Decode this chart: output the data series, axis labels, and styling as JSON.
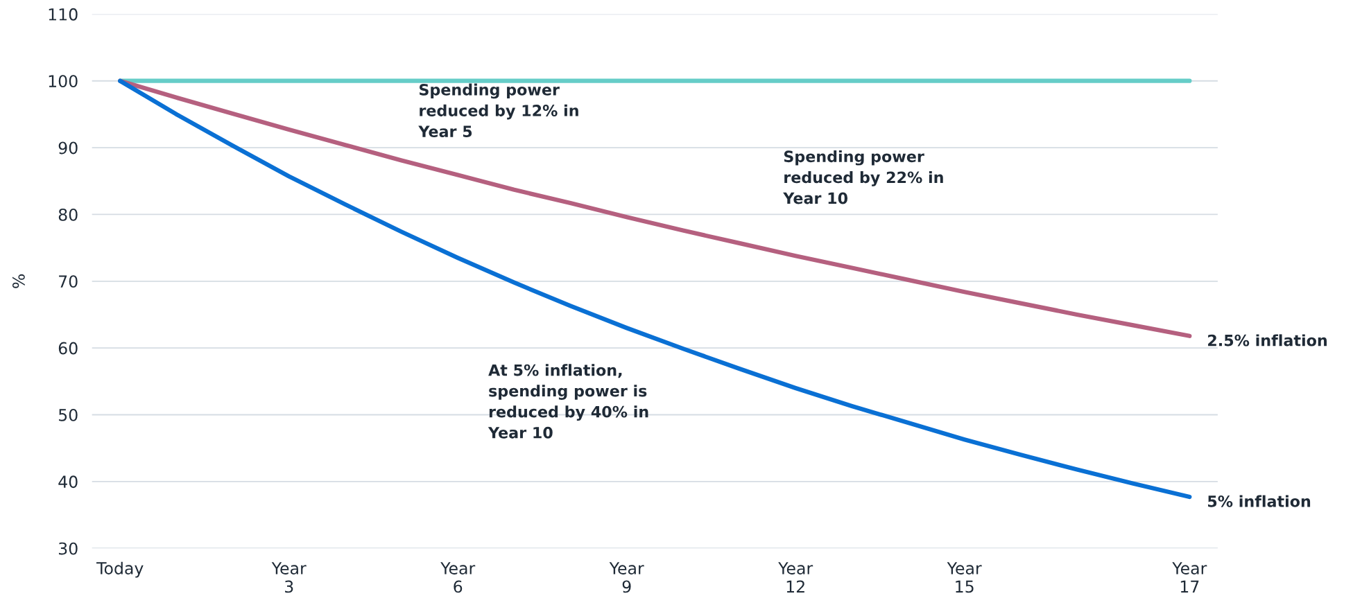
{
  "chart_data": {
    "type": "line",
    "ylabel": "%",
    "categories": [
      "Today",
      null,
      null,
      "Year\n3",
      null,
      null,
      "Year\n6",
      null,
      null,
      "Year\n9",
      null,
      null,
      "Year\n12",
      null,
      null,
      "Year\n15",
      null,
      null,
      null,
      "Year\n17"
    ],
    "series": [
      {
        "color": "#66cdc8",
        "values": [
          100,
          100,
          100,
          100,
          100,
          100,
          100,
          100,
          100,
          100,
          100,
          100,
          100,
          100,
          100,
          100,
          100,
          100,
          100,
          100
        ]
      },
      {
        "name": "2.5% inflation",
        "color": "#b5607f",
        "values": [
          100,
          97.5,
          95.1,
          92.7,
          90.4,
          88.1,
          85.9,
          83.7,
          81.7,
          79.6,
          77.6,
          75.7,
          73.8,
          72.0,
          70.2,
          68.4,
          66.7,
          65.0,
          63.4,
          61.8
        ]
      },
      {
        "name": "5% inflation",
        "color": "#0a70d4",
        "values": [
          100,
          95,
          90.3,
          85.7,
          81.5,
          77.4,
          73.5,
          69.8,
          66.3,
          63.0,
          59.9,
          56.9,
          54.0,
          51.3,
          48.8,
          46.3,
          44.0,
          41.8,
          39.7,
          37.7
        ]
      }
    ],
    "ylim": [
      30,
      110
    ],
    "yticks": [
      30,
      40,
      50,
      60,
      70,
      80,
      90,
      100,
      110
    ],
    "grid": "y",
    "marker": "none",
    "line_style": "solid",
    "annotations": [
      "Spending power\nreduced by 12% in\nYear 5",
      "Spending power\nreduced by 22% in\nYear 10",
      "At 5% inflation,\nspending power is\nreduced by 40% in\nYear 10"
    ]
  }
}
